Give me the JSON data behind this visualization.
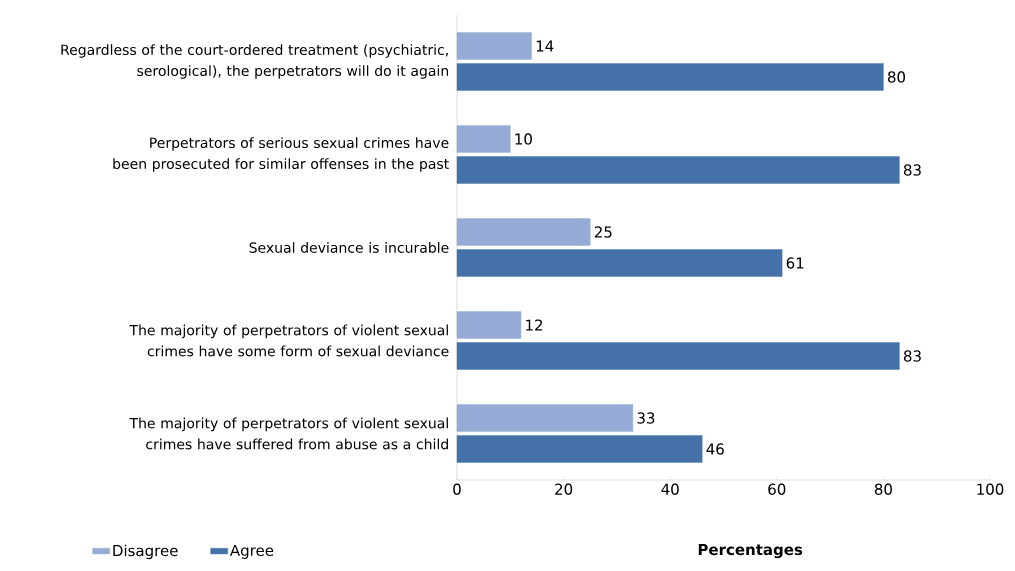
{
  "chart_data": {
    "type": "bar",
    "orientation": "horizontal",
    "xlabel": "Percentages",
    "categories": [
      "Regardless of the court-ordered treatment (psychiatric, serological), the perpetrators will do it again",
      "Perpetrators of serious sexual crimes have been prosecuted for similar offenses in the past",
      "Sexual deviance is incurable",
      "The majority of perpetrators of violent sexual crimes  have some form of sexual deviance",
      "The majority of perpetrators of violent sexual crimes have suffered from abuse as a child"
    ],
    "series": [
      {
        "name": "Disagree",
        "color": "#95abd5",
        "values": [
          14,
          10,
          25,
          12,
          33
        ]
      },
      {
        "name": "Agree",
        "color": "#4471a7",
        "values": [
          80,
          83,
          61,
          83,
          46
        ]
      }
    ],
    "xlim": [
      0,
      100
    ],
    "xticks": [
      0,
      20,
      40,
      60,
      80,
      100
    ],
    "data_labels": true,
    "legend": "bottom left",
    "grid": false
  }
}
